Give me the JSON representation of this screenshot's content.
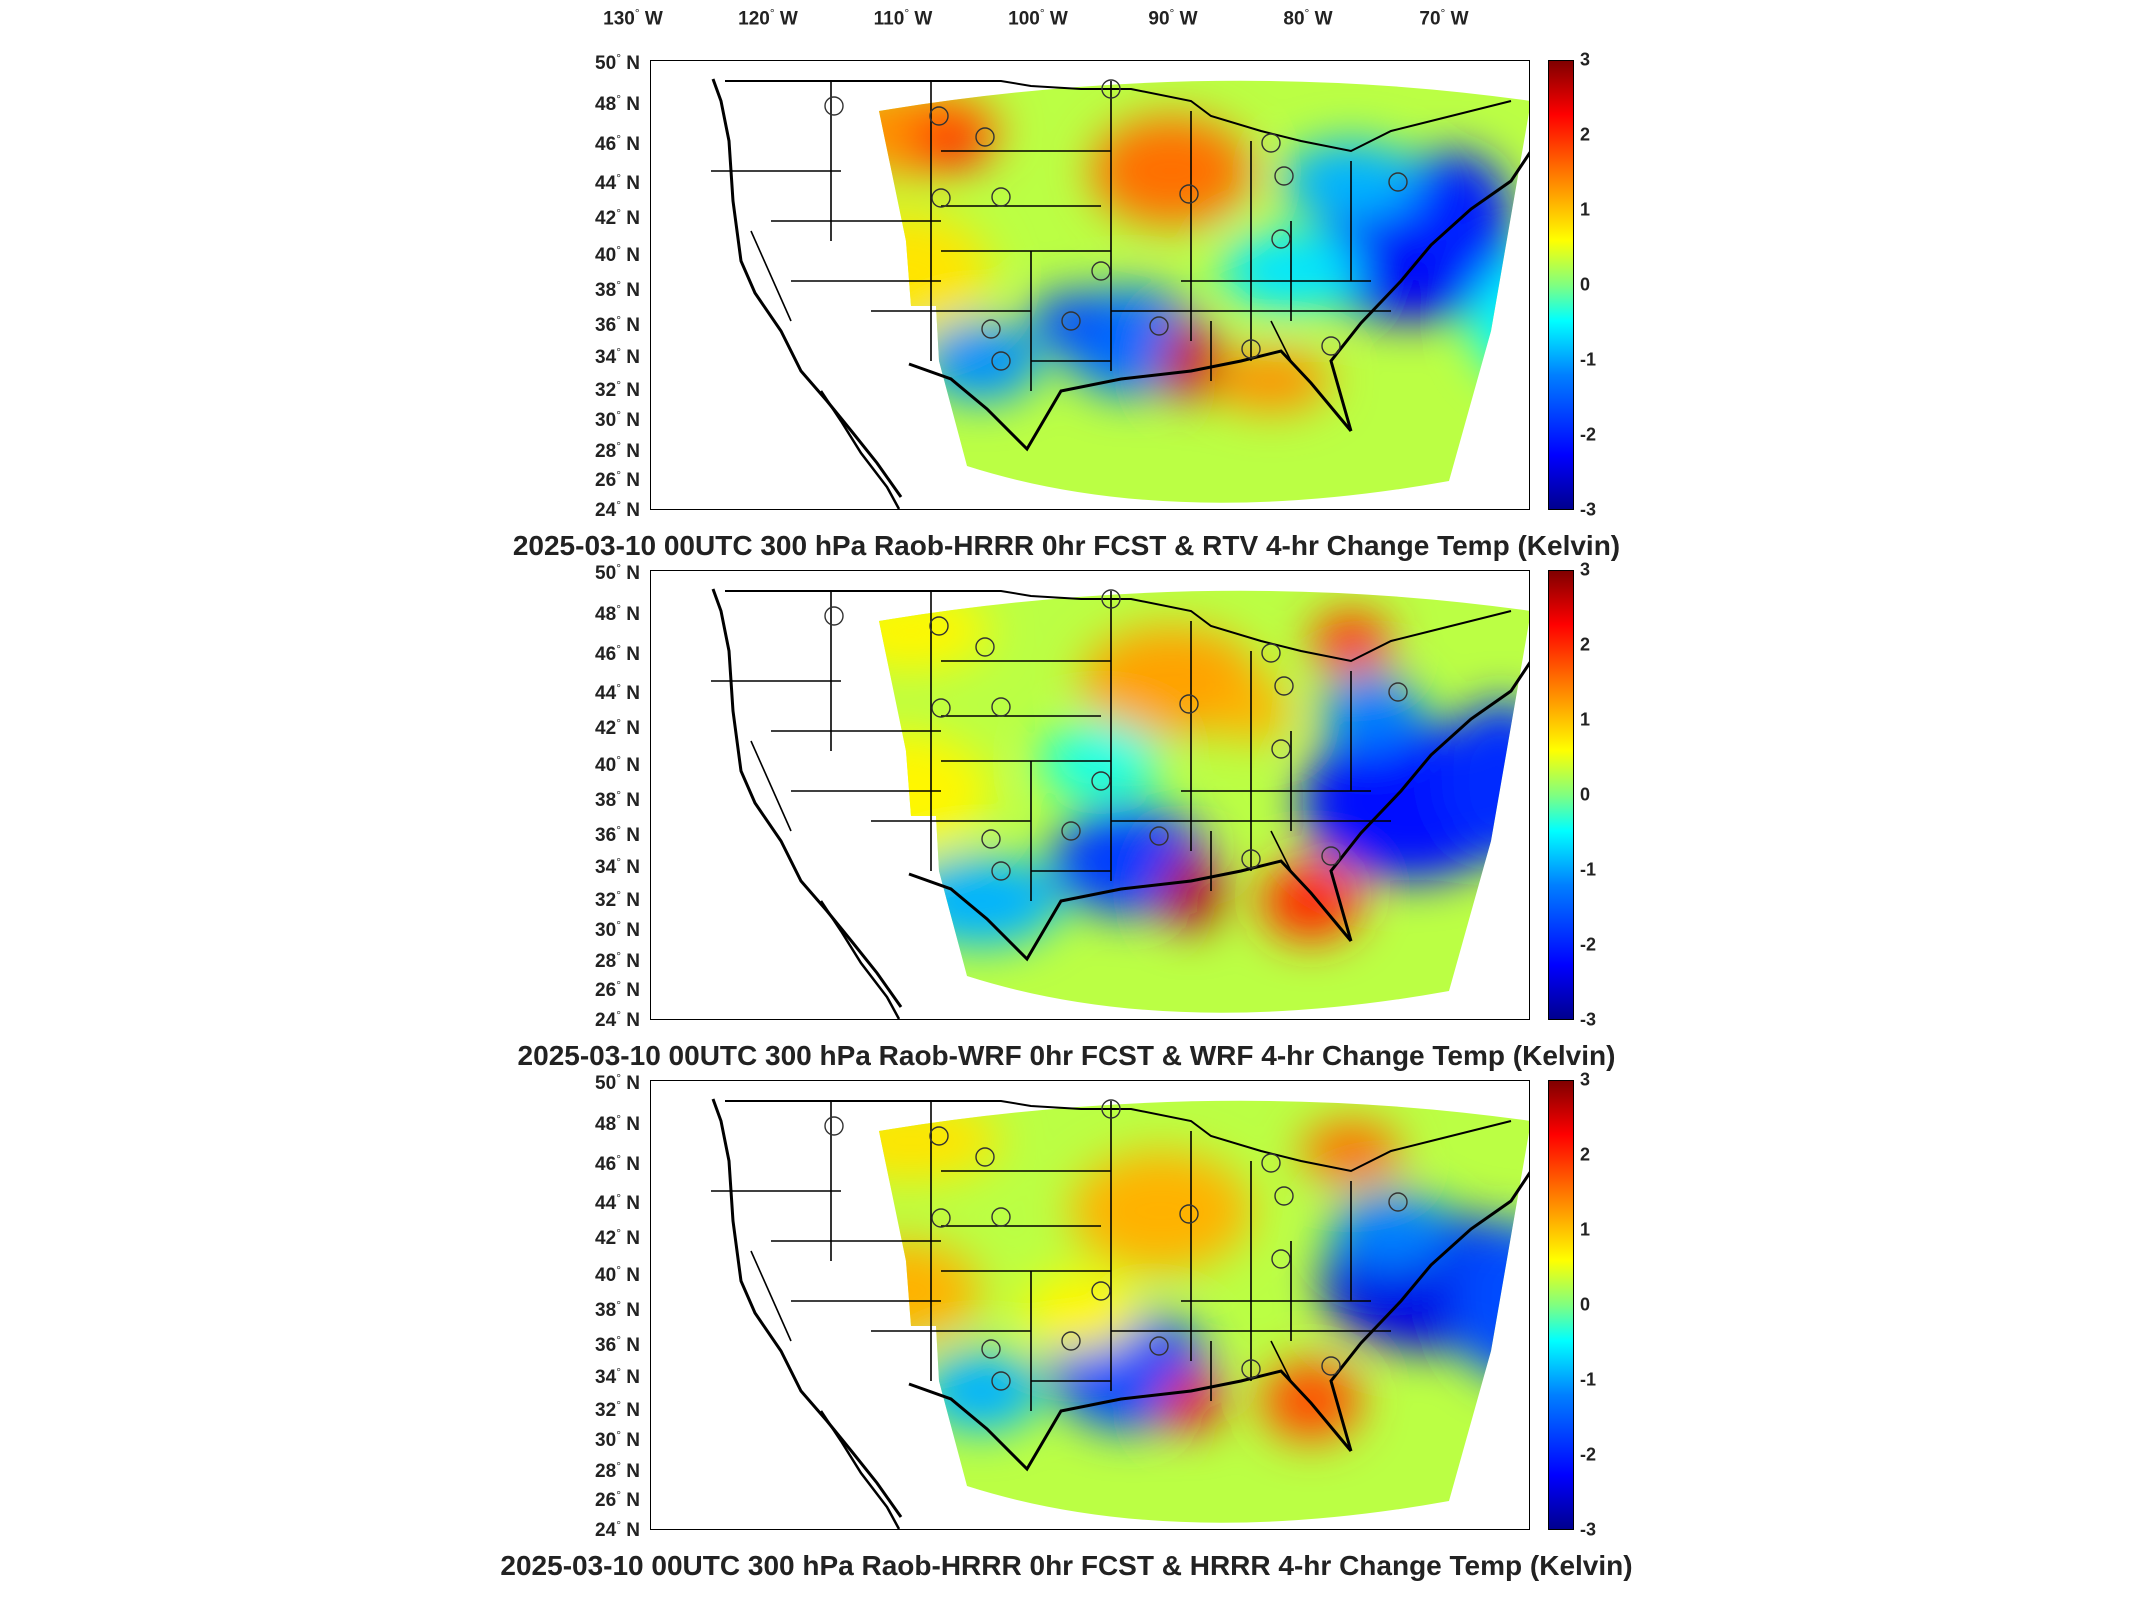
{
  "lon_ticks": [
    {
      "deg": "130",
      "hem": "W"
    },
    {
      "deg": "120",
      "hem": "W"
    },
    {
      "deg": "110",
      "hem": "W"
    },
    {
      "deg": "100",
      "hem": "W"
    },
    {
      "deg": "90",
      "hem": "W"
    },
    {
      "deg": "80",
      "hem": "W"
    },
    {
      "deg": "70",
      "hem": "W"
    }
  ],
  "lat_ticks": [
    {
      "deg": "50",
      "hem": "N"
    },
    {
      "deg": "48",
      "hem": "N"
    },
    {
      "deg": "46",
      "hem": "N"
    },
    {
      "deg": "44",
      "hem": "N"
    },
    {
      "deg": "42",
      "hem": "N"
    },
    {
      "deg": "40",
      "hem": "N"
    },
    {
      "deg": "38",
      "hem": "N"
    },
    {
      "deg": "36",
      "hem": "N"
    },
    {
      "deg": "34",
      "hem": "N"
    },
    {
      "deg": "32",
      "hem": "N"
    },
    {
      "deg": "30",
      "hem": "N"
    },
    {
      "deg": "28",
      "hem": "N"
    },
    {
      "deg": "26",
      "hem": "N"
    },
    {
      "deg": "24",
      "hem": "N"
    }
  ],
  "colorbar": {
    "ticks": [
      "3",
      "2",
      "1",
      "0",
      "-1",
      "-2",
      "-3"
    ],
    "range": [
      -3,
      3
    ],
    "colormap": "jet"
  },
  "panels": [
    {
      "title": "2025-03-10 00UTC 300 hPa Raob-HRRR 0hr FCST & RTV 4-hr Change Temp (Kelvin)"
    },
    {
      "title": "2025-03-10 00UTC 300 hPa Raob-WRF 0hr FCST & WRF 4-hr Change Temp (Kelvin)"
    },
    {
      "title": "2025-03-10 00UTC 300 hPa Raob-HRRR 0hr FCST & HRRR 4-hr Change Temp (Kelvin)"
    }
  ]
}
